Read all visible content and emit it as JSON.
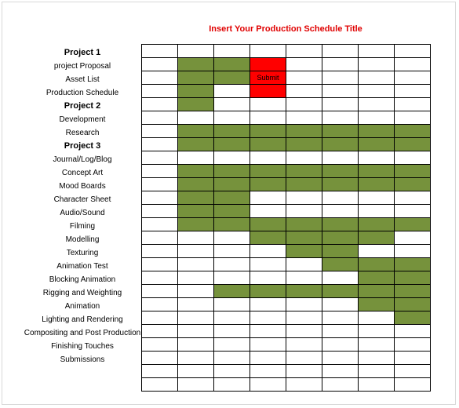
{
  "title": "Insert Your Production Schedule Title",
  "colors": {
    "filled": "#76923c",
    "highlight": "#ff0000",
    "title": "#e00000"
  },
  "rows": [
    {
      "label": "",
      "header": false,
      "cells": [
        0,
        0,
        0,
        0,
        0,
        0,
        0,
        0
      ]
    },
    {
      "label": "Project 1",
      "header": true,
      "cells": [
        0,
        1,
        1,
        2,
        0,
        0,
        0,
        0
      ]
    },
    {
      "label": "project Proposal",
      "header": false,
      "cells": [
        0,
        1,
        1,
        2,
        0,
        0,
        0,
        0
      ]
    },
    {
      "label": "Asset List",
      "header": false,
      "cells": [
        0,
        1,
        0,
        2,
        0,
        0,
        0,
        0
      ]
    },
    {
      "label": "Production Schedule",
      "header": false,
      "cells": [
        0,
        1,
        0,
        0,
        0,
        0,
        0,
        0
      ]
    },
    {
      "label": "Project 2",
      "header": true,
      "cells": [
        0,
        0,
        0,
        0,
        0,
        0,
        0,
        0
      ]
    },
    {
      "label": "Development",
      "header": false,
      "cells": [
        0,
        1,
        1,
        1,
        1,
        1,
        1,
        1
      ]
    },
    {
      "label": "Research",
      "header": false,
      "cells": [
        0,
        1,
        1,
        1,
        1,
        1,
        1,
        1
      ]
    },
    {
      "label": "Project 3",
      "header": true,
      "cells": [
        0,
        0,
        0,
        0,
        0,
        0,
        0,
        0
      ]
    },
    {
      "label": "Journal/Log/Blog",
      "header": false,
      "cells": [
        0,
        1,
        1,
        1,
        1,
        1,
        1,
        1
      ]
    },
    {
      "label": "Concept Art",
      "header": false,
      "cells": [
        0,
        1,
        1,
        1,
        1,
        1,
        1,
        1
      ]
    },
    {
      "label": "Mood Boards",
      "header": false,
      "cells": [
        0,
        1,
        1,
        0,
        0,
        0,
        0,
        0
      ]
    },
    {
      "label": "Character Sheet",
      "header": false,
      "cells": [
        0,
        1,
        1,
        0,
        0,
        0,
        0,
        0
      ]
    },
    {
      "label": "Audio/Sound",
      "header": false,
      "cells": [
        0,
        1,
        1,
        1,
        1,
        1,
        1,
        1
      ]
    },
    {
      "label": "Filming",
      "header": false,
      "cells": [
        0,
        0,
        0,
        1,
        1,
        1,
        1,
        0
      ]
    },
    {
      "label": "Modelling",
      "header": false,
      "cells": [
        0,
        0,
        0,
        0,
        1,
        1,
        0,
        0
      ]
    },
    {
      "label": "Texturing",
      "header": false,
      "cells": [
        0,
        0,
        0,
        0,
        0,
        1,
        1,
        1
      ]
    },
    {
      "label": "Animation Test",
      "header": false,
      "cells": [
        0,
        0,
        0,
        0,
        0,
        0,
        1,
        1
      ]
    },
    {
      "label": "Blocking Animation",
      "header": false,
      "cells": [
        0,
        0,
        1,
        1,
        1,
        1,
        1,
        1
      ]
    },
    {
      "label": "Rigging and Weighting",
      "header": false,
      "cells": [
        0,
        0,
        0,
        0,
        0,
        0,
        1,
        1
      ]
    },
    {
      "label": "Animation",
      "header": false,
      "cells": [
        0,
        0,
        0,
        0,
        0,
        0,
        0,
        1
      ]
    },
    {
      "label": "Lighting and Rendering",
      "header": false,
      "cells": [
        0,
        0,
        0,
        0,
        0,
        0,
        0,
        0
      ]
    },
    {
      "label": "Compositing and Post Production",
      "header": false,
      "cells": [
        0,
        0,
        0,
        0,
        0,
        0,
        0,
        0
      ]
    },
    {
      "label": "Finishing Touches",
      "header": false,
      "cells": [
        0,
        0,
        0,
        0,
        0,
        0,
        0,
        0
      ]
    },
    {
      "label": "Submissions",
      "header": false,
      "cells": [
        0,
        0,
        0,
        0,
        0,
        0,
        0,
        0
      ]
    },
    {
      "label": "",
      "header": false,
      "cells": [
        0,
        0,
        0,
        0,
        0,
        0,
        0,
        0
      ]
    }
  ],
  "submit_cell": {
    "label": "Submit"
  }
}
